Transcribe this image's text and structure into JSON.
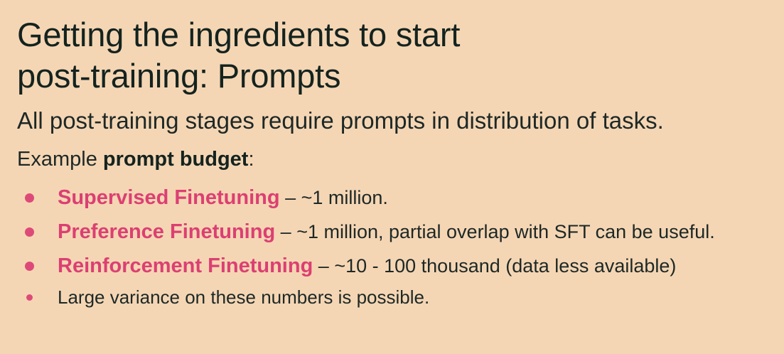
{
  "slide": {
    "title_lines": [
      "Getting the ingredients to start",
      "post-training: Prompts"
    ],
    "subtitle": "All post-training stages require prompts in distribution of tasks.",
    "budget": {
      "prefix": "Example ",
      "bold": "prompt budget",
      "suffix": ":"
    },
    "items": [
      {
        "term": "Supervised Finetuning",
        "text": " – ~1 million."
      },
      {
        "term": "Preference Finetuning",
        "text": " – ~1 million, partial overlap with SFT can be useful."
      },
      {
        "term": "Reinforcement Finetuning",
        "text": " – ~10 - 100 thousand (data less available)"
      }
    ],
    "note": "Large variance on these numbers is possible.",
    "colors": {
      "background": "#f5d6b4",
      "accent": "#dc3f72",
      "text": "#14231f"
    }
  }
}
